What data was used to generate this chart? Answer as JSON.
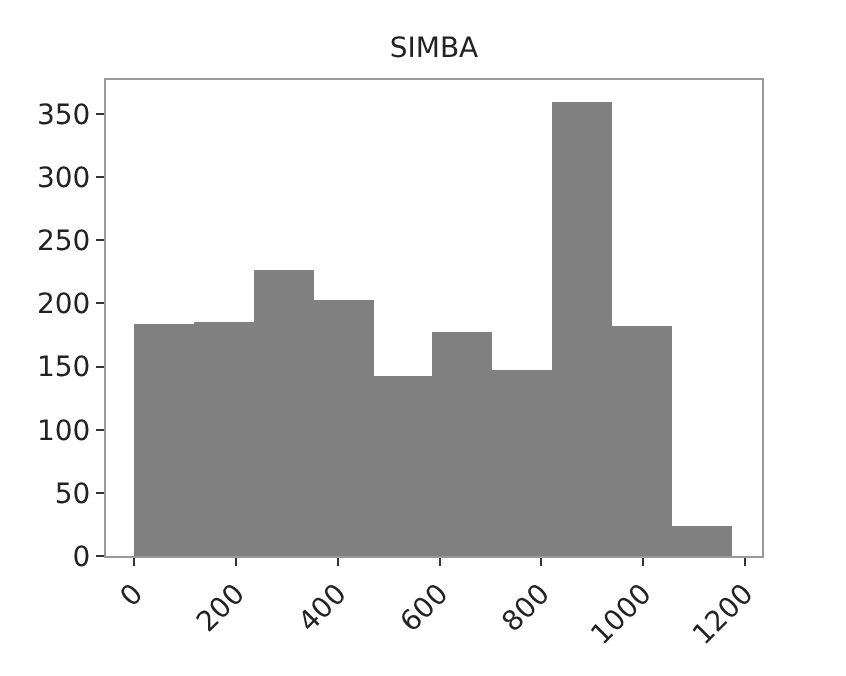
{
  "chart_data": {
    "type": "histogram",
    "title": "SIMBA",
    "bins": [
      0,
      117,
      235,
      352,
      470,
      587,
      704,
      822,
      939,
      1057,
      1174
    ],
    "values": [
      183,
      186,
      227,
      203,
      142,
      177,
      147,
      359,
      182,
      24
    ],
    "color": "#808080",
    "xlim": [
      -56,
      1234
    ],
    "xticks": [
      0,
      200,
      400,
      600,
      800,
      1000,
      1200
    ],
    "ylim": [
      0,
      377
    ],
    "yticks": [
      0,
      50,
      100,
      150,
      200,
      250,
      300,
      350
    ]
  }
}
